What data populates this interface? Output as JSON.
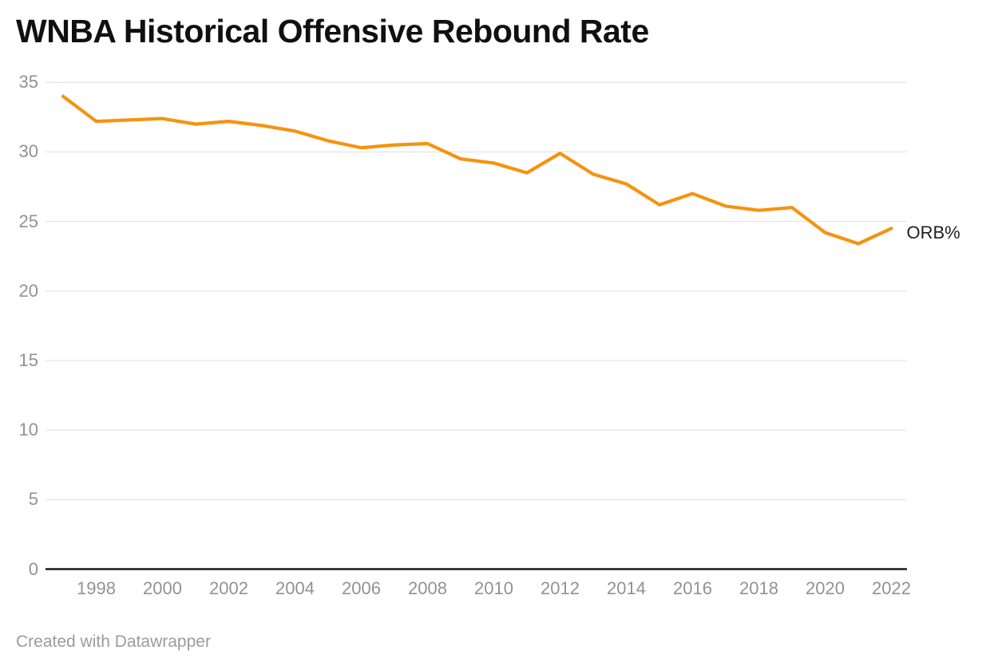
{
  "header": {
    "title": "WNBA Historical Offensive Rebound Rate"
  },
  "series": {
    "label": "ORB%"
  },
  "footer": {
    "attribution": "Created with Datawrapper"
  },
  "colors": {
    "line": "#F5930F",
    "grid": "#E0E0E0",
    "axis": "#1A1A1A",
    "tick_text": "#929292",
    "title_text": "#101010",
    "series_label_text": "#1F1F1F",
    "footer_text": "#9B9B9B",
    "background": "#FFFFFF"
  },
  "chart_data": {
    "type": "line",
    "title": "WNBA Historical Offensive Rebound Rate",
    "xlabel": "",
    "ylabel": "",
    "x": [
      1997,
      1998,
      1999,
      2000,
      2001,
      2002,
      2003,
      2004,
      2005,
      2006,
      2007,
      2008,
      2009,
      2010,
      2011,
      2012,
      2013,
      2014,
      2015,
      2016,
      2017,
      2018,
      2019,
      2020,
      2021,
      2022
    ],
    "series": [
      {
        "name": "ORB%",
        "values": [
          34.0,
          32.2,
          32.3,
          32.4,
          32.0,
          32.2,
          31.9,
          31.5,
          30.8,
          30.3,
          30.5,
          30.6,
          29.5,
          29.2,
          28.5,
          29.9,
          28.4,
          27.7,
          26.2,
          27.0,
          26.1,
          25.8,
          26.0,
          24.2,
          23.4,
          24.5
        ]
      }
    ],
    "xlim": [
      1997,
      2022
    ],
    "ylim": [
      0,
      35
    ],
    "y_ticks": [
      0,
      5,
      10,
      15,
      20,
      25,
      30,
      35
    ],
    "x_ticks": [
      1998,
      2000,
      2002,
      2004,
      2006,
      2008,
      2010,
      2012,
      2014,
      2016,
      2018,
      2020,
      2022
    ],
    "grid": "horizontal",
    "legend": "direct-label-at-line-end"
  }
}
